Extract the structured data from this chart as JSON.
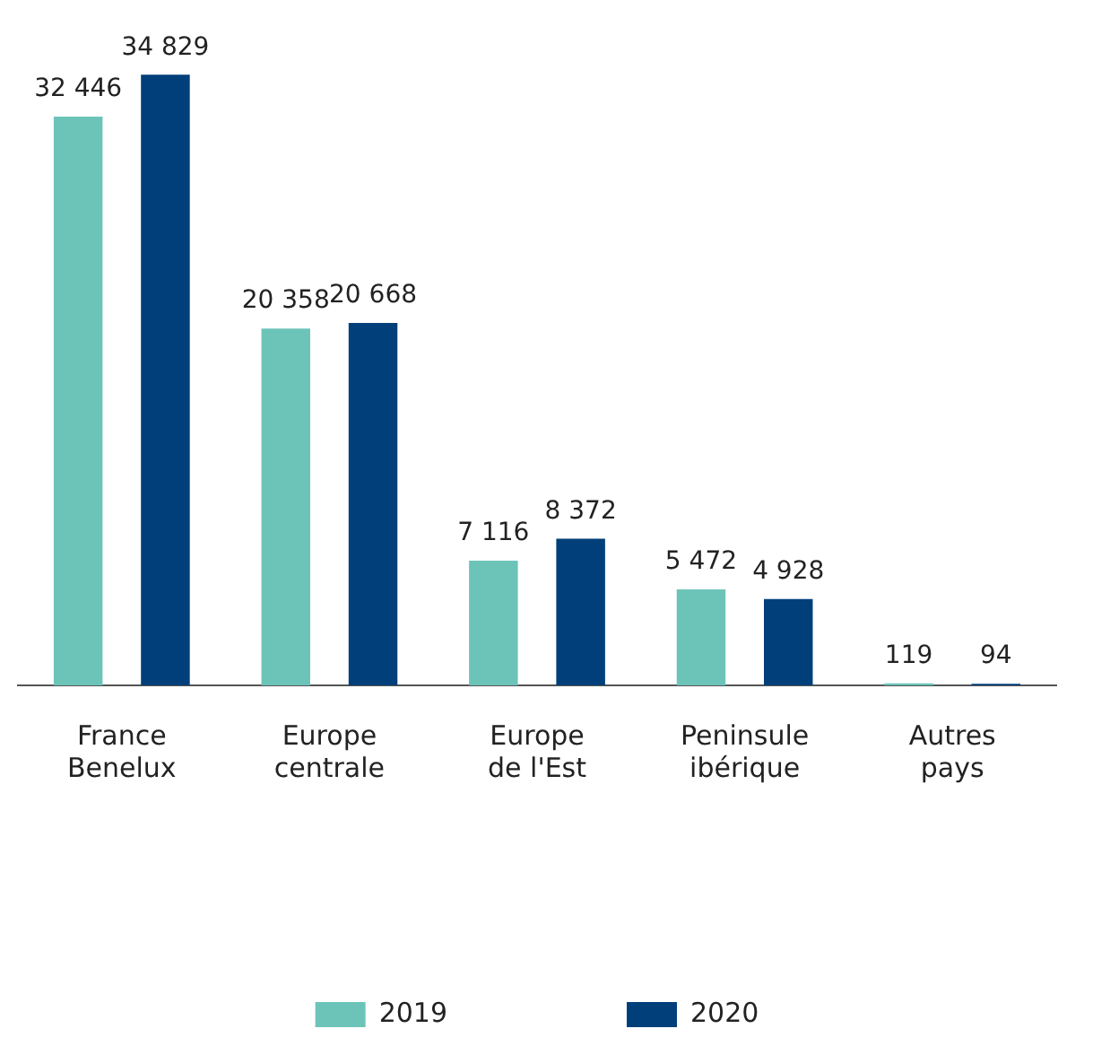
{
  "chart_data": {
    "type": "bar",
    "categories": [
      "France Benelux",
      "Europe centrale",
      "Europe de l'Est",
      "Peninsule ibérique",
      "Autres pays"
    ],
    "series": [
      {
        "name": "2019",
        "color": "#6cc4b9",
        "values": [
          32446,
          20358,
          7116,
          5472,
          119
        ],
        "value_labels": [
          "32 446",
          "20 358",
          "7 116",
          "5 472",
          "119"
        ]
      },
      {
        "name": "2020",
        "color": "#003f7a",
        "values": [
          34829,
          20668,
          8372,
          4928,
          94
        ],
        "value_labels": [
          "34 829",
          "20 668",
          "8 372",
          "4 928",
          "94"
        ]
      }
    ],
    "grid": false,
    "legend": "bottom",
    "tick_labels": "x"
  }
}
